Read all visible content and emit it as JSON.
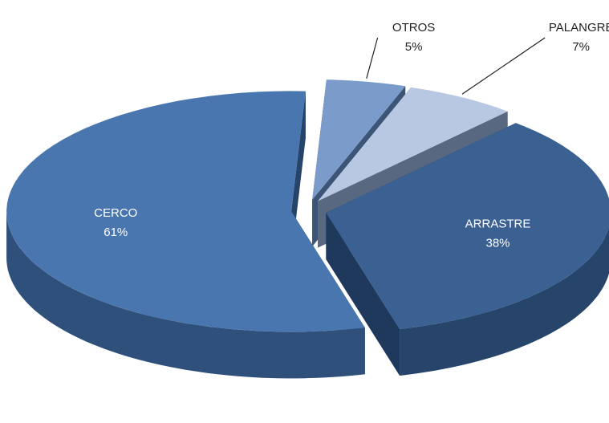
{
  "chart_data": {
    "type": "pie",
    "categories": [
      "OTROS",
      "PALANGRE",
      "ARRASTRE",
      "CERCO"
    ],
    "values": [
      5,
      7,
      38,
      61
    ],
    "value_labels": [
      "5%",
      "7%",
      "38%",
      "61%"
    ],
    "colors": [
      "#7b9bcb",
      "#b9c8e2",
      "#3b6193",
      "#4a76b0"
    ]
  }
}
